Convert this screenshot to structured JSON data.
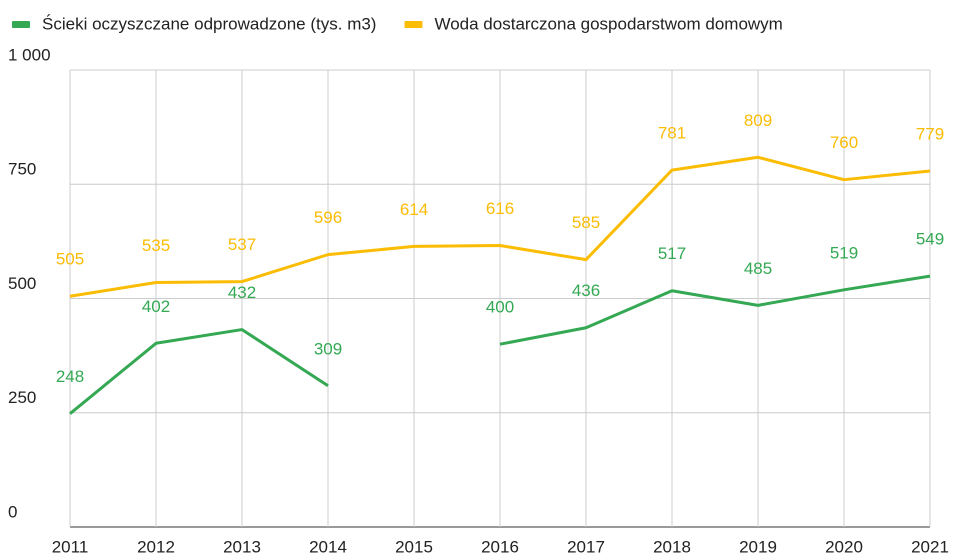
{
  "chart_data": {
    "type": "line",
    "categories": [
      "2011",
      "2012",
      "2013",
      "2014",
      "2015",
      "2016",
      "2017",
      "2018",
      "2019",
      "2020",
      "2021"
    ],
    "series": [
      {
        "name": "Ścieki oczyszczane odprowadzone (tys. m3)",
        "color": "#34a853",
        "values": [
          248,
          402,
          432,
          309,
          null,
          400,
          436,
          517,
          485,
          519,
          549
        ]
      },
      {
        "name": "Woda dostarczona gospodarstwom domowym",
        "color": "#fbbc04",
        "values": [
          505,
          535,
          537,
          596,
          614,
          616,
          585,
          781,
          809,
          760,
          779
        ]
      }
    ],
    "ylim": [
      0,
      1000
    ],
    "yticks": [
      0,
      250,
      500,
      750,
      {
        "value": 1000,
        "label": "1 000"
      }
    ],
    "grid": true,
    "legend": "top"
  }
}
